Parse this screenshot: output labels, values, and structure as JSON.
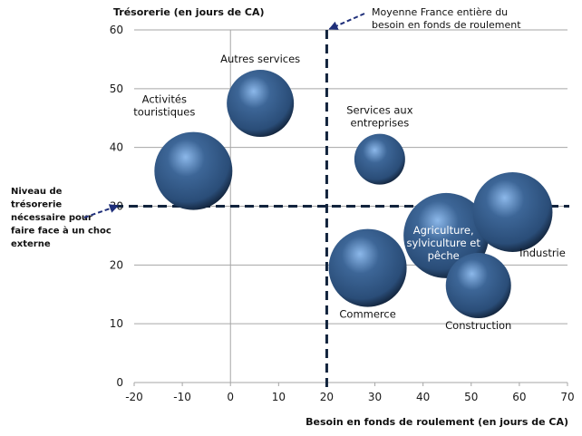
{
  "chart_data": {
    "type": "bubble",
    "title": "",
    "xlabel": "Besoin en fonds de roulement (en jours de CA)",
    "ylabel": "Trésorerie (en jours de CA)",
    "xlim": [
      -20,
      70
    ],
    "ylim": [
      0,
      60
    ],
    "xticks": [
      -20,
      -10,
      0,
      10,
      20,
      30,
      40,
      50,
      60,
      70
    ],
    "yticks": [
      0,
      10,
      20,
      30,
      40,
      50,
      60
    ],
    "grid": "horizontal",
    "series": [
      {
        "name": "Activités touristiques",
        "label_lines": [
          "Activités",
          "touristiques"
        ],
        "x": -7.7,
        "y": 36,
        "size": 43,
        "label_pos": "above-left"
      },
      {
        "name": "Autres services",
        "label_lines": [
          "Autres services"
        ],
        "x": 6.2,
        "y": 47.5,
        "size": 37,
        "label_pos": "above"
      },
      {
        "name": "Services aux entreprises",
        "label_lines": [
          "Services aux",
          "entreprises"
        ],
        "x": 31,
        "y": 38,
        "size": 28,
        "label_pos": "above"
      },
      {
        "name": "Commerce",
        "label_lines": [
          "Commerce"
        ],
        "x": 28.5,
        "y": 19.5,
        "size": 43,
        "label_pos": "below"
      },
      {
        "name": "Agriculture, sylviculture et pêche",
        "label_lines": [
          "Agriculture,",
          "sylviculture et",
          "pêche"
        ],
        "x": 44.8,
        "y": 25,
        "size": 47,
        "label_pos": "inside"
      },
      {
        "name": "Industrie",
        "label_lines": [
          "Industrie"
        ],
        "x": 58.6,
        "y": 29,
        "size": 44,
        "label_pos": "below-right"
      },
      {
        "name": "Construction",
        "label_lines": [
          "Construction"
        ],
        "x": 51.5,
        "y": 16.5,
        "size": 36,
        "label_pos": "below"
      }
    ],
    "reference_lines": [
      {
        "orientation": "vertical",
        "value": 20,
        "style": "dashed"
      },
      {
        "orientation": "horizontal",
        "value": 30,
        "style": "dashed"
      }
    ],
    "annotations": [
      {
        "id": "avg",
        "lines": [
          "Moyenne France entière du",
          "besoin en fonds de roulement"
        ],
        "points_to": {
          "x": 20,
          "y": 60
        }
      },
      {
        "id": "threshold",
        "lines": [
          "Niveau de",
          "trésorerie",
          "nécessaire pour",
          "faire face à un choc",
          "externe"
        ],
        "points_to": {
          "x": -20,
          "y": 30
        }
      }
    ],
    "colors": {
      "bubble": "#3d6697",
      "bubble_highlight": "#8cb8ea",
      "bubble_shadow": "#0f1e33",
      "ref_line": "#12243d",
      "grid": "#a6a6a6",
      "arrow": "#1f2f7a"
    }
  }
}
